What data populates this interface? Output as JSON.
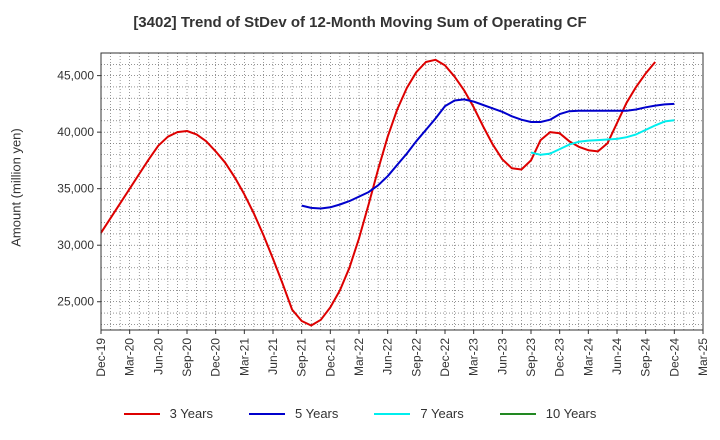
{
  "chart_data": {
    "type": "line",
    "title": "[3402]  Trend of StDev of 12-Month Moving Sum of Operating CF",
    "xlabel": "",
    "ylabel": "Amount (million yen)",
    "ylim": [
      22500,
      47000
    ],
    "yticks": [
      25000,
      30000,
      35000,
      40000,
      45000
    ],
    "ytick_labels": [
      "25,000",
      "30,000",
      "35,000",
      "40,000",
      "45,000"
    ],
    "xtick_labels": [
      "Dec-19",
      "Mar-20",
      "Jun-20",
      "Sep-20",
      "Dec-20",
      "Mar-21",
      "Jun-21",
      "Sep-21",
      "Dec-21",
      "Mar-22",
      "Jun-22",
      "Sep-22",
      "Dec-22",
      "Mar-23",
      "Jun-23",
      "Sep-23",
      "Dec-23",
      "Mar-24",
      "Jun-24",
      "Sep-24",
      "Dec-24",
      "Mar-25"
    ],
    "grid": true,
    "legend_position": "bottom",
    "series": [
      {
        "name": "3 Years",
        "color": "#dd0000",
        "start_index": 0,
        "values": [
          31100,
          32400,
          33700,
          35000,
          36300,
          37600,
          38800,
          39600,
          40000,
          40100,
          39800,
          39200,
          38300,
          37300,
          36000,
          34500,
          32800,
          30900,
          28800,
          26600,
          24300,
          23300,
          22900,
          23400,
          24500,
          26000,
          28000,
          30600,
          33600,
          36700,
          39600,
          42000,
          43900,
          45300,
          46200,
          46400,
          45900,
          44900,
          43700,
          42200,
          40500,
          38900,
          37600,
          36800,
          36700,
          37500,
          39300,
          40000,
          39900,
          39200,
          38700,
          38400,
          38300,
          39000,
          40800,
          42600,
          44000,
          45200,
          46200
        ]
      },
      {
        "name": "5 Years",
        "color": "#0000cc",
        "start_index": 21,
        "values": [
          33500,
          33300,
          33250,
          33350,
          33600,
          33900,
          34300,
          34700,
          35300,
          36100,
          37100,
          38100,
          39200,
          40200,
          41200,
          42300,
          42800,
          42900,
          42700,
          42400,
          42100,
          41800,
          41400,
          41100,
          40900,
          40900,
          41100,
          41600,
          41850,
          41900,
          41900,
          41900,
          41900,
          41900,
          41900,
          42000,
          42200,
          42350,
          42450,
          42500
        ]
      },
      {
        "name": "7 Years",
        "color": "#00eeee",
        "start_index": 45,
        "values": [
          38200,
          38000,
          38100,
          38500,
          38900,
          39150,
          39250,
          39300,
          39350,
          39400,
          39550,
          39800,
          40200,
          40600,
          40950,
          41050
        ]
      },
      {
        "name": "10 Years",
        "color": "#228822",
        "start_index": 0,
        "values": []
      }
    ]
  }
}
